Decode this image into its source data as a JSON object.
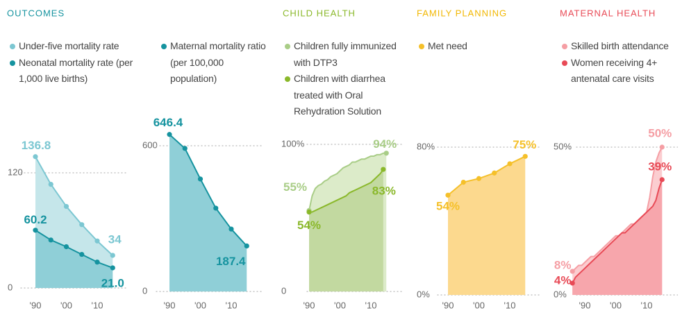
{
  "chart_data": [
    {
      "type": "area",
      "title": "OUTCOMES",
      "grid": true,
      "markers": "all",
      "xlim": [
        1985,
        2020
      ],
      "xticks": [
        {
          "value": 1990,
          "label": "'90"
        },
        {
          "value": 2000,
          "label": "'00"
        },
        {
          "value": 2010,
          "label": "'10"
        }
      ],
      "ylim": [
        0,
        150
      ],
      "yticks": [
        0,
        120
      ],
      "series": [
        {
          "name": "Under-five mortality rate",
          "color": "#7cc7d2",
          "fill": "#c5e6ea",
          "x": [
            1990,
            1995,
            2000,
            2005,
            2010,
            2015
          ],
          "values": [
            136.8,
            108,
            85,
            66,
            49,
            34
          ],
          "value_labels": [
            "136.8",
            null,
            null,
            null,
            null,
            "34"
          ]
        },
        {
          "name": "Neonatal mortality rate (per 1,000 live births)",
          "color": "#15939f",
          "fill": "#8fcfd7",
          "x": [
            1990,
            1995,
            2000,
            2005,
            2010,
            2015
          ],
          "values": [
            60.2,
            50,
            43,
            35,
            27,
            21
          ],
          "value_labels": [
            "60.2",
            null,
            null,
            null,
            null,
            "21.0"
          ]
        }
      ]
    },
    {
      "type": "area",
      "grid": true,
      "markers": "all",
      "xlim": [
        1985,
        2020
      ],
      "xticks": [
        {
          "value": 1990,
          "label": "'90"
        },
        {
          "value": 2000,
          "label": "'00"
        },
        {
          "value": 2010,
          "label": "'10"
        }
      ],
      "ylim": [
        0,
        700
      ],
      "yticks": [
        0,
        600
      ],
      "series": [
        {
          "name": "Maternal mortality ratio (per 100,000 population)",
          "color": "#15939f",
          "fill": "#8fcfd7",
          "x": [
            1990,
            1995,
            2000,
            2005,
            2010,
            2015
          ],
          "values": [
            646.4,
            589,
            463,
            343,
            257,
            187.4
          ],
          "value_labels": [
            "646.4",
            null,
            null,
            null,
            null,
            "187.4"
          ]
        }
      ]
    },
    {
      "type": "area",
      "title": "CHILD HEALTH",
      "grid": true,
      "markers": "ends",
      "xlim": [
        1985,
        2020
      ],
      "xticks": [
        {
          "value": 1990,
          "label": "'90"
        },
        {
          "value": 2000,
          "label": "'00"
        },
        {
          "value": 2010,
          "label": "'10"
        }
      ],
      "ylim": [
        0,
        100
      ],
      "yticks": [
        0,
        {
          "value": 100,
          "label": "100%"
        }
      ],
      "series": [
        {
          "name": "Children fully immunized with DTP3",
          "color": "#a9cd87",
          "fill": "#dcebc9",
          "x": [
            1990,
            1991,
            1992,
            1993,
            1994,
            1995,
            1996,
            1997,
            1998,
            1999,
            2000,
            2001,
            2002,
            2003,
            2004,
            2005,
            2006,
            2007,
            2008,
            2009,
            2010,
            2011,
            2012,
            2013,
            2014,
            2015
          ],
          "values": [
            55,
            65,
            70,
            72,
            73,
            75,
            76,
            78,
            79,
            80,
            82,
            84,
            85,
            86,
            88,
            88,
            89,
            90,
            90,
            91,
            92,
            92,
            93,
            93,
            94,
            94
          ],
          "value_labels": [
            "55%",
            null,
            null,
            null,
            null,
            null,
            null,
            null,
            null,
            null,
            null,
            null,
            null,
            null,
            null,
            null,
            null,
            null,
            null,
            null,
            null,
            null,
            null,
            null,
            null,
            "94%"
          ]
        },
        {
          "name": "Children with diarrhea treated with Oral Rehydration Solution",
          "color": "#8ab82a",
          "fill": "#c2d9a0",
          "x": [
            1990,
            1991,
            1992,
            1993,
            1994,
            1995,
            1996,
            1997,
            1998,
            1999,
            2000,
            2001,
            2002,
            2003,
            2004,
            2005,
            2006,
            2007,
            2008,
            2009,
            2010,
            2011,
            2012,
            2013,
            2014
          ],
          "values": [
            54,
            54,
            55,
            56,
            57,
            58,
            59,
            60,
            61,
            62,
            63,
            64,
            65,
            67,
            68,
            69,
            70,
            71,
            72,
            73,
            74,
            76,
            78,
            80,
            83
          ],
          "value_labels": [
            "54%",
            null,
            null,
            null,
            null,
            null,
            null,
            null,
            null,
            null,
            null,
            null,
            null,
            null,
            null,
            null,
            null,
            null,
            null,
            null,
            null,
            null,
            null,
            null,
            "83%"
          ]
        }
      ]
    },
    {
      "type": "area",
      "title": "FAMILY PLANNING",
      "grid": true,
      "markers": "all",
      "xlim": [
        1985,
        2020
      ],
      "xticks": [
        {
          "value": 1990,
          "label": "'90"
        },
        {
          "value": 2000,
          "label": "'00"
        },
        {
          "value": 2010,
          "label": "'10"
        }
      ],
      "ylim": [
        0,
        80
      ],
      "yticks": [
        {
          "value": 0,
          "label": "0%"
        },
        {
          "value": 80,
          "label": "80%"
        }
      ],
      "series": [
        {
          "name": "Met need",
          "color": "#f5c02a",
          "fill": "#fcd98e",
          "x": [
            1990,
            1995,
            2000,
            2005,
            2010,
            2015
          ],
          "values": [
            54,
            61,
            63,
            66,
            71,
            75
          ],
          "value_labels": [
            "54%",
            null,
            null,
            null,
            null,
            "75%"
          ]
        }
      ]
    },
    {
      "type": "area",
      "title": "MATERNAL HEALTH",
      "grid": true,
      "markers": "ends",
      "xlim": [
        1980,
        2020
      ],
      "xticks": [
        {
          "value": 1990,
          "label": "'90"
        },
        {
          "value": 2000,
          "label": "'00"
        },
        {
          "value": 2010,
          "label": "'10"
        }
      ],
      "ylim": [
        0,
        50
      ],
      "yticks": [
        {
          "value": 0,
          "label": "0%"
        },
        {
          "value": 50,
          "label": "50%"
        }
      ],
      "series": [
        {
          "name": "Skilled birth attendance",
          "color": "#f59ea4",
          "fill": "#fbcdd0",
          "x": [
            1986,
            1987,
            1988,
            1989,
            1990,
            1991,
            1992,
            1993,
            1994,
            1995,
            1996,
            1997,
            1998,
            1999,
            2000,
            2001,
            2002,
            2003,
            2004,
            2005,
            2006,
            2007,
            2008,
            2009,
            2010,
            2011,
            2012,
            2013,
            2014,
            2015
          ],
          "values": [
            8,
            9,
            10,
            10,
            11,
            12,
            13,
            13,
            14,
            15,
            16,
            17,
            18,
            19,
            20,
            20,
            21,
            22,
            23,
            24,
            24,
            25,
            26,
            27,
            28,
            33,
            40,
            45,
            48,
            50
          ],
          "value_labels": [
            "8%",
            null,
            null,
            null,
            null,
            null,
            null,
            null,
            null,
            null,
            null,
            null,
            null,
            null,
            null,
            null,
            null,
            null,
            null,
            null,
            null,
            null,
            null,
            null,
            null,
            null,
            null,
            null,
            null,
            "50%"
          ]
        },
        {
          "name": "Women receiving 4+ antenatal care visits",
          "color": "#e84a56",
          "fill": "#f7a6ac",
          "x": [
            1986,
            1987,
            1988,
            1989,
            1990,
            1991,
            1992,
            1993,
            1994,
            1995,
            1996,
            1997,
            1998,
            1999,
            2000,
            2001,
            2002,
            2003,
            2004,
            2005,
            2006,
            2007,
            2008,
            2009,
            2010,
            2011,
            2012,
            2013,
            2014,
            2015
          ],
          "values": [
            4,
            6,
            7,
            8,
            9,
            10,
            11,
            12,
            13,
            14,
            15,
            16,
            17,
            18,
            19,
            20,
            21,
            21,
            22,
            23,
            24,
            25,
            26,
            27,
            28,
            29,
            30,
            32,
            36,
            39
          ],
          "value_labels": [
            "4%",
            null,
            null,
            null,
            null,
            null,
            null,
            null,
            null,
            null,
            null,
            null,
            null,
            null,
            null,
            null,
            null,
            null,
            null,
            null,
            null,
            null,
            null,
            null,
            null,
            null,
            null,
            null,
            null,
            "39%"
          ]
        }
      ]
    }
  ]
}
